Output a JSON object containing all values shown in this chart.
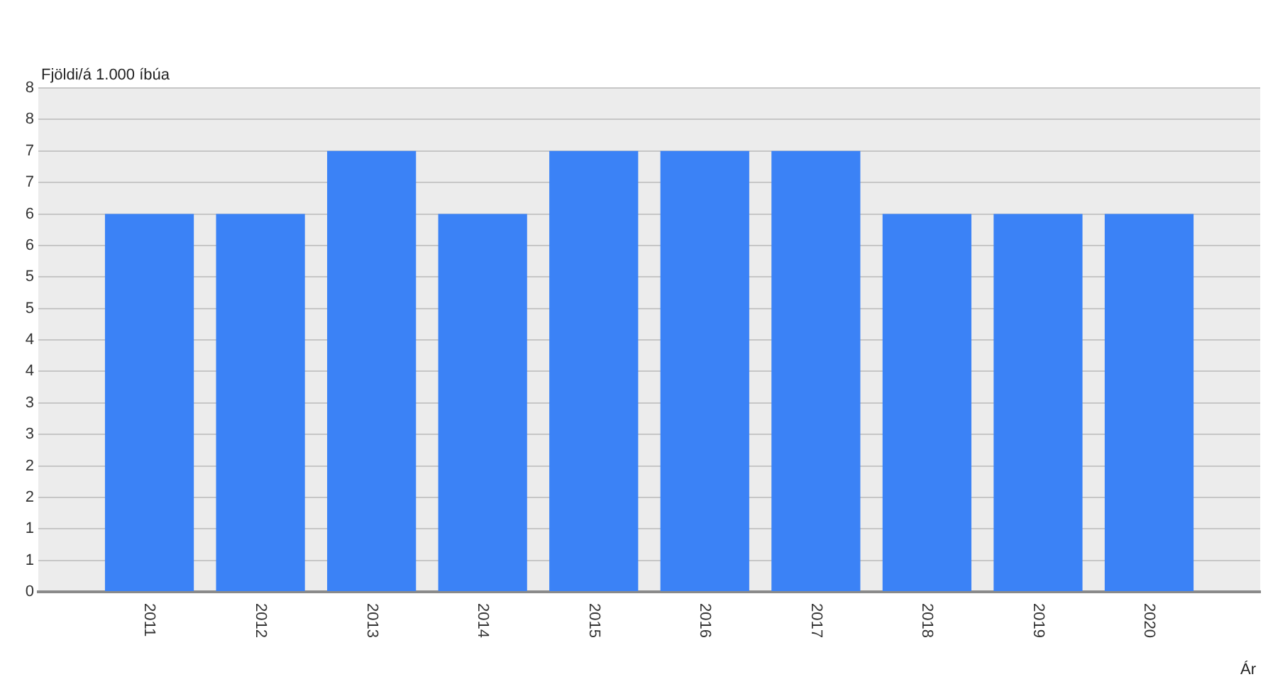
{
  "chart_data": {
    "type": "bar",
    "xlabel": "Ár",
    "ylabel": "Fjöldi/á 1.000 íbúa",
    "categories": [
      "2011",
      "2012",
      "2013",
      "2014",
      "2015",
      "2016",
      "2017",
      "2018",
      "2019",
      "2020"
    ],
    "values": [
      6,
      6,
      7,
      6,
      7,
      7,
      7,
      6,
      6,
      6
    ],
    "color": "#3b82f6",
    "ylim": [
      0,
      8
    ],
    "yticks": [
      0,
      {
        "value": 0.5,
        "label": "1"
      },
      1,
      {
        "value": 1.5,
        "label": "2"
      },
      2,
      {
        "value": 2.5,
        "label": "3"
      },
      3,
      {
        "value": 3.5,
        "label": "4"
      },
      4,
      {
        "value": 4.5,
        "label": "5"
      },
      5,
      {
        "value": 5.5,
        "label": "6"
      },
      6,
      {
        "value": 6.5,
        "label": "7"
      },
      7,
      {
        "value": 7.5,
        "label": "8"
      },
      8
    ],
    "grid": "y"
  }
}
